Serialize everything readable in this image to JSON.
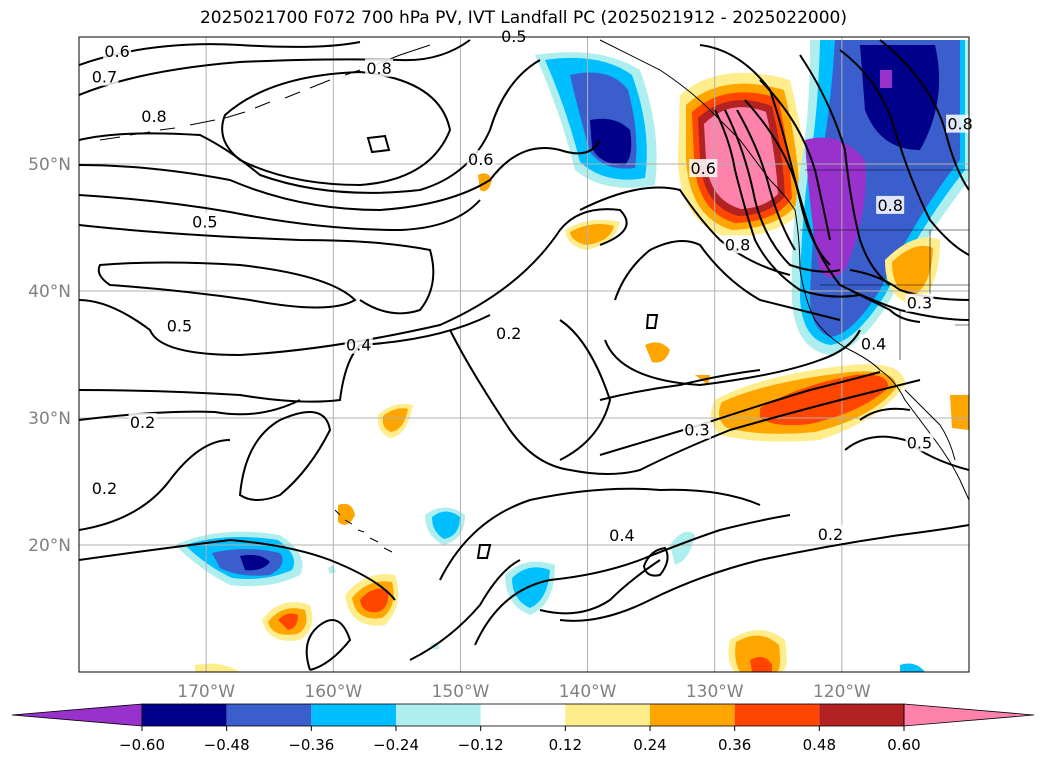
{
  "title": "2025021700 F072 700 hPa PV, IVT Landfall PC (2025021912 - 2025022000)",
  "map": {
    "lon_range": [
      -180,
      -110
    ],
    "lat_range": [
      10,
      60
    ],
    "grid_color": "#b0b0b0",
    "lat_ticks": [
      {
        "lat": 50,
        "label": "50°N"
      },
      {
        "lat": 40,
        "label": "40°N"
      },
      {
        "lat": 30,
        "label": "30°N"
      },
      {
        "lat": 20,
        "label": "20°N"
      }
    ],
    "lon_ticks": [
      {
        "lon": -170,
        "label": "170°W"
      },
      {
        "lon": -160,
        "label": "160°W"
      },
      {
        "lon": -150,
        "label": "150°W"
      },
      {
        "lon": -140,
        "label": "140°W"
      },
      {
        "lon": -130,
        "label": "130°W"
      },
      {
        "lon": -120,
        "label": "120°W"
      }
    ],
    "contour_labels": [
      {
        "text": "0.6",
        "lon": -177,
        "lat": 58.8
      },
      {
        "text": "0.7",
        "lon": -178,
        "lat": 56.8
      },
      {
        "text": "0.8",
        "lon": -174.1,
        "lat": 53.7
      },
      {
        "text": "0.8",
        "lon": -156.4,
        "lat": 57.5
      },
      {
        "text": "0.6",
        "lon": -148.4,
        "lat": 50.3
      },
      {
        "text": "0.5",
        "lon": -170.1,
        "lat": 45.4
      },
      {
        "text": "0.5",
        "lon": -172.1,
        "lat": 37.2
      },
      {
        "text": "0.4",
        "lon": -158,
        "lat": 35.7
      },
      {
        "text": "0.2",
        "lon": -146.2,
        "lat": 36.6
      },
      {
        "text": "0.2",
        "lon": -175,
        "lat": 29.6
      },
      {
        "text": "0.2",
        "lon": -178,
        "lat": 24.4
      },
      {
        "text": "0.3",
        "lon": -131.4,
        "lat": 29
      },
      {
        "text": "0.4",
        "lon": -137.3,
        "lat": 20.7
      },
      {
        "text": "0.2",
        "lon": -120.9,
        "lat": 20.8
      },
      {
        "text": "0.5",
        "lon": -113.9,
        "lat": 28
      },
      {
        "text": "0.8",
        "lon": -128.2,
        "lat": 43.6
      },
      {
        "text": "0.3",
        "lon": -113.9,
        "lat": 39
      },
      {
        "text": "0.4",
        "lon": -117.5,
        "lat": 35.8
      },
      {
        "text": "0.8",
        "lon": -116.2,
        "lat": 46.7
      },
      {
        "text": "0.8",
        "lon": -110.7,
        "lat": 53.1
      },
      {
        "text": "0.6",
        "lon": -130.9,
        "lat": 49.6
      },
      {
        "text": "0.5",
        "lon": -145.8,
        "lat": 60
      }
    ]
  },
  "colorbar": {
    "colors": [
      "#9932cc",
      "#00008b",
      "#3a5fcd",
      "#00bfff",
      "#afeeee",
      "#ffffff",
      "#ffec8b",
      "#ffa500",
      "#ff4500",
      "#b22222",
      "#ff82ab"
    ],
    "ticks": [
      "−0.60",
      "−0.48",
      "−0.36",
      "−0.24",
      "−0.12",
      "0.12",
      "0.24",
      "0.36",
      "0.48",
      "0.60"
    ]
  }
}
